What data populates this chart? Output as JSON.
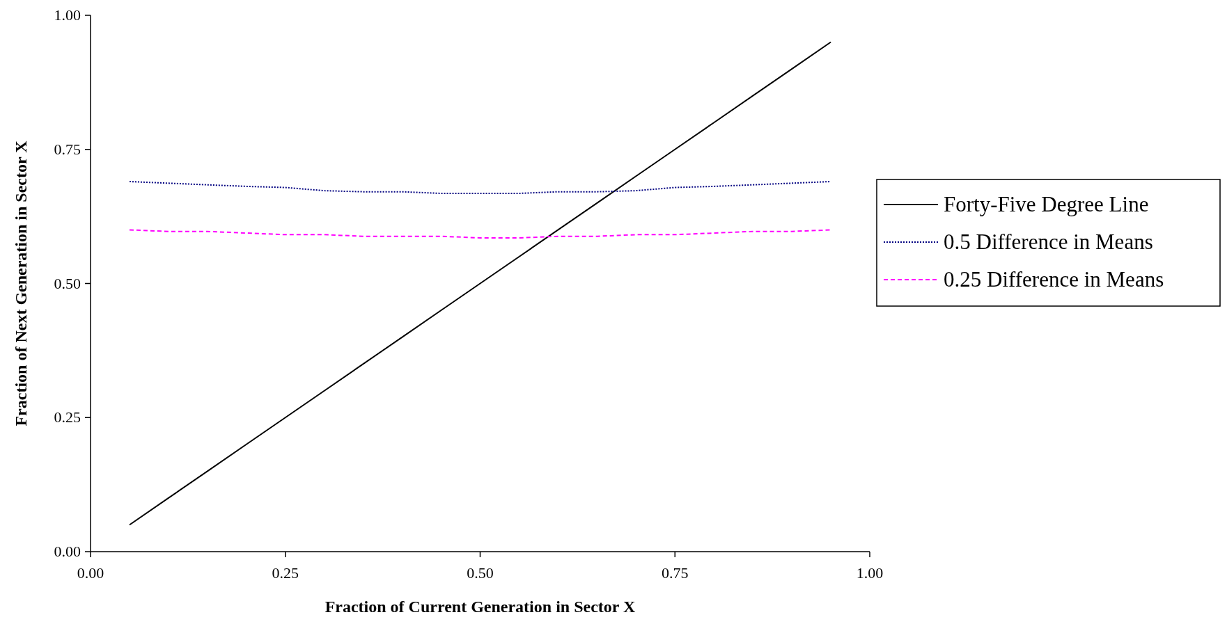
{
  "chart_data": {
    "type": "line",
    "xlabel": "Fraction of Current Generation in Sector X",
    "ylabel": "Fraction of Next Generation in Sector X",
    "x": [
      0.05,
      0.1,
      0.15,
      0.2,
      0.25,
      0.3,
      0.35,
      0.4,
      0.45,
      0.5,
      0.55,
      0.6,
      0.65,
      0.7,
      0.75,
      0.8,
      0.85,
      0.9,
      0.95
    ],
    "series": [
      {
        "name": "Forty-Five Degree Line",
        "color": "#000000",
        "line_style": "solid",
        "values": [
          0.05,
          0.1,
          0.15,
          0.2,
          0.25,
          0.3,
          0.35,
          0.4,
          0.45,
          0.5,
          0.55,
          0.6,
          0.65,
          0.7,
          0.75,
          0.8,
          0.85,
          0.9,
          0.95
        ]
      },
      {
        "name": "0.5 Difference in Means",
        "color": "#000080",
        "line_style": "dotted",
        "values": [
          0.69,
          0.687,
          0.684,
          0.681,
          0.679,
          0.673,
          0.671,
          0.671,
          0.668,
          0.668,
          0.668,
          0.671,
          0.671,
          0.673,
          0.679,
          0.681,
          0.684,
          0.687,
          0.69
        ]
      },
      {
        "name": "0.25 Difference in Means",
        "color": "#ff00ff",
        "line_style": "dashed",
        "values": [
          0.6,
          0.597,
          0.597,
          0.594,
          0.591,
          0.591,
          0.588,
          0.588,
          0.588,
          0.585,
          0.585,
          0.588,
          0.588,
          0.591,
          0.591,
          0.594,
          0.597,
          0.597,
          0.6
        ]
      }
    ],
    "xlim": [
      0,
      1
    ],
    "xticks": [
      {
        "value": 0,
        "label": "0.00"
      },
      {
        "value": 0.25,
        "label": "0.25"
      },
      {
        "value": 0.5,
        "label": "0.50"
      },
      {
        "value": 0.75,
        "label": "0.75"
      },
      {
        "value": 1,
        "label": "1.00"
      }
    ],
    "ylim": [
      0,
      1
    ],
    "yticks": [
      {
        "value": 0,
        "label": "0.00"
      },
      {
        "value": 0.25,
        "label": "0.25"
      },
      {
        "value": 0.5,
        "label": "0.50"
      },
      {
        "value": 0.75,
        "label": "0.75"
      },
      {
        "value": 1,
        "label": "1.00"
      }
    ],
    "grid": false,
    "legend": "right",
    "marker": "none"
  }
}
